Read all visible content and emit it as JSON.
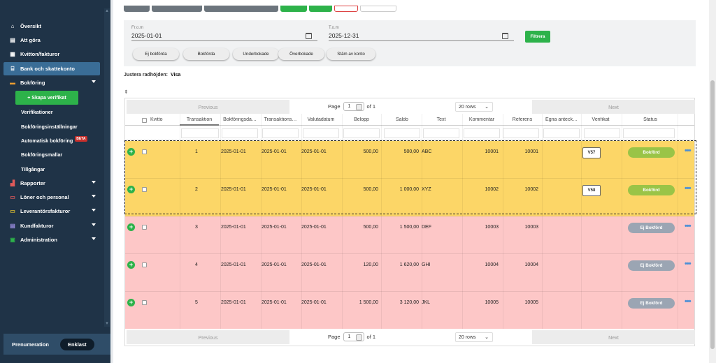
{
  "sidebar": {
    "items": [
      {
        "label": "Översikt",
        "icon": "home-icon"
      },
      {
        "label": "Att göra",
        "icon": "list-icon"
      },
      {
        "label": "Kvitton/fakturor",
        "icon": "receipt-icon"
      },
      {
        "label": "Bank och skattekonto",
        "icon": "bank-icon"
      },
      {
        "label": "Bokföring",
        "icon": "ledger-icon"
      },
      {
        "label": "Verifikationer"
      },
      {
        "label": "Bokföringsinställningar"
      },
      {
        "label": "Automatisk bokföring",
        "badge": "BETA"
      },
      {
        "label": "Bokföringsmallar"
      },
      {
        "label": "Tillgångar"
      },
      {
        "label": "Rapporter",
        "icon": "chart-icon"
      },
      {
        "label": "Löner och personal",
        "icon": "people-icon"
      },
      {
        "label": "Leverantörsfakturor",
        "icon": "invoice-in-icon"
      },
      {
        "label": "Kundfakturor",
        "icon": "invoice-out-icon"
      },
      {
        "label": "Administration",
        "icon": "admin-icon"
      }
    ],
    "create_button": "+ Skapa verifikat",
    "footer_label": "Prenumeration",
    "footer_plan": "Enklast"
  },
  "filter": {
    "from_label": "Fr.o.m",
    "from_value": "2025-01-01",
    "to_label": "T.o.m",
    "to_value": "2025-12-31",
    "filter_button": "Filtrera",
    "chips": [
      "Ej bokförda",
      "Bokförda",
      "Underbokade",
      "Överbokade",
      "Stäm av konto"
    ]
  },
  "row_height": {
    "label": "Justera radhöjden:",
    "value": "Visa"
  },
  "pager": {
    "previous": "Previous",
    "next": "Next",
    "page_label": "Page",
    "page_value": "1",
    "of_label": "of 1",
    "rows_select": "20 rows"
  },
  "columns": [
    "Kvitto",
    "Transaktion",
    "Bokföringsda…",
    "Transaktions…",
    "Valutadatum",
    "Belopp",
    "Saldo",
    "Text",
    "Kommentar",
    "Referens",
    "Egna anteck…",
    "Verifikat",
    "Status"
  ],
  "rows": [
    {
      "transaktion": "1",
      "bokforingsdatum": "2025-01-01",
      "transaktionsdatum": "2025-01-01",
      "valutadatum": "2025-01-01",
      "belopp": "500,00",
      "saldo": "500,00",
      "text": "ABC",
      "kommentar": "10001",
      "referens": "10001",
      "verifikat": "V57",
      "status": "Bokförd"
    },
    {
      "transaktion": "2",
      "bokforingsdatum": "2025-01-01",
      "transaktionsdatum": "2025-01-01",
      "valutadatum": "2025-01-01",
      "belopp": "500,00",
      "saldo": "1 000,00",
      "text": "XYZ",
      "kommentar": "10002",
      "referens": "10002",
      "verifikat": "V58",
      "status": "Bokförd"
    },
    {
      "transaktion": "3",
      "bokforingsdatum": "2025-01-01",
      "transaktionsdatum": "2025-01-01",
      "valutadatum": "2025-01-01",
      "belopp": "500,00",
      "saldo": "1 500,00",
      "text": "DEF",
      "kommentar": "10003",
      "referens": "10003",
      "verifikat": "",
      "status": "Ej Bokförd"
    },
    {
      "transaktion": "4",
      "bokforingsdatum": "2025-01-01",
      "transaktionsdatum": "2025-01-01",
      "valutadatum": "2025-01-01",
      "belopp": "120,00",
      "saldo": "1 620,00",
      "text": "GHI",
      "kommentar": "10004",
      "referens": "10004",
      "verifikat": "",
      "status": "Ej Bokförd"
    },
    {
      "transaktion": "5",
      "bokforingsdatum": "2025-01-01",
      "transaktionsdatum": "2025-01-01",
      "valutadatum": "2025-01-01",
      "belopp": "1 500,00",
      "saldo": "3 120,00",
      "text": "JKL",
      "kommentar": "10005",
      "referens": "10005",
      "verifikat": "",
      "status": "Ej Bokförd"
    }
  ],
  "colors": {
    "sidebar_bg": "#1f3347",
    "accent_green": "#2db24a",
    "booked_row": "#fcd667",
    "unbooked_row": "#fdc7c7",
    "booked_status": "#9ac447",
    "unbooked_status": "#9ba5b3"
  }
}
